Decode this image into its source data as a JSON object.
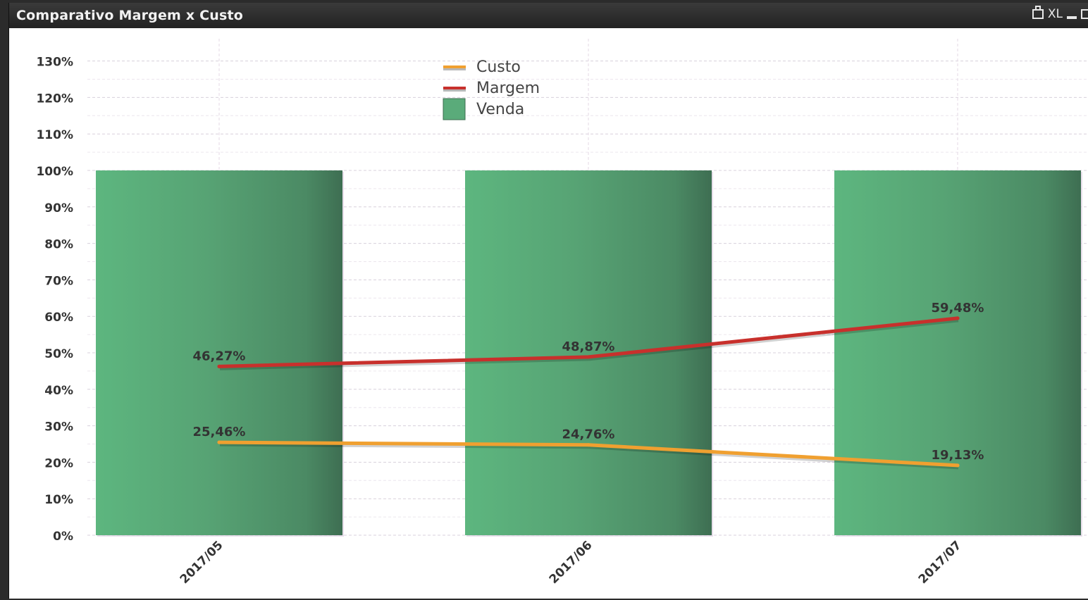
{
  "window": {
    "title": "Comparativo Margem x Custo",
    "icons": [
      "print-icon",
      "xl-export-icon",
      "minimize-icon",
      "maximize-icon"
    ],
    "xl_label": "XL"
  },
  "chart_data": {
    "type": "bar",
    "categories": [
      "2017/05",
      "2017/06",
      "2017/07"
    ],
    "ylim": [
      0,
      130
    ],
    "yticks": [
      "0%",
      "10%",
      "20%",
      "30%",
      "40%",
      "50%",
      "60%",
      "70%",
      "80%",
      "90%",
      "100%",
      "110%",
      "120%",
      "130%"
    ],
    "grid": true,
    "legend_position": "top-center",
    "series": [
      {
        "name": "Venda",
        "kind": "bar",
        "color": "#5aab7a",
        "values": [
          100,
          100,
          100
        ],
        "labels": [
          "",
          "",
          ""
        ]
      },
      {
        "name": "Margem",
        "kind": "line",
        "color": "#c8302c",
        "values": [
          46.27,
          48.87,
          59.48
        ],
        "labels": [
          "46,27%",
          "48,87%",
          "59,48%"
        ]
      },
      {
        "name": "Custo",
        "kind": "line",
        "color": "#f0a030",
        "values": [
          25.46,
          24.76,
          19.13
        ],
        "labels": [
          "25,46%",
          "24,76%",
          "19,13%"
        ]
      }
    ],
    "legend": [
      "Custo",
      "Margem",
      "Venda"
    ]
  }
}
